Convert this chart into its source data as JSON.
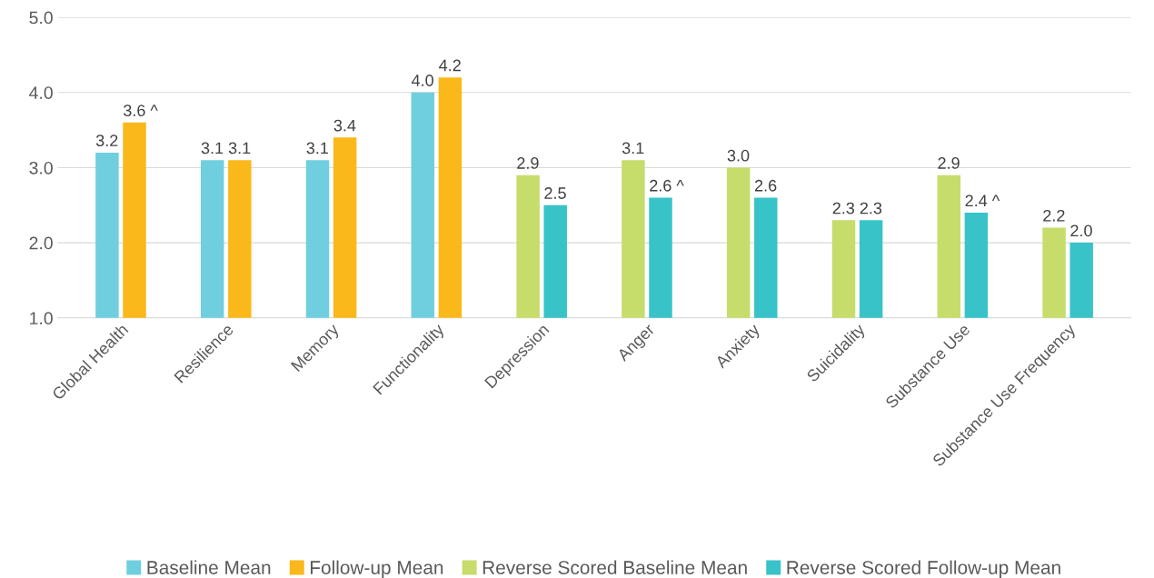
{
  "chart_data": {
    "type": "bar",
    "categories": [
      "Global Health",
      "Resilience",
      "Memory",
      "Functionality",
      "Depression",
      "Anger",
      "Anxiety",
      "Suicidality",
      "Substance Use",
      "Substance Use Frequency"
    ],
    "series": [
      {
        "name": "Baseline Mean",
        "color": "#6fcfdf",
        "values": [
          3.2,
          3.1,
          3.1,
          4.0,
          null,
          null,
          null,
          null,
          null,
          null
        ],
        "value_labels": [
          "3.2",
          "3.1",
          "3.1",
          "4.0",
          null,
          null,
          null,
          null,
          null,
          null
        ]
      },
      {
        "name": "Follow-up Mean",
        "color": "#fbb81a",
        "values": [
          3.6,
          3.1,
          3.4,
          4.2,
          null,
          null,
          null,
          null,
          null,
          null
        ],
        "value_labels": [
          "3.6 ^",
          "3.1",
          "3.4",
          "4.2",
          null,
          null,
          null,
          null,
          null,
          null
        ]
      },
      {
        "name": "Reverse Scored Baseline Mean",
        "color": "#c6dc6b",
        "values": [
          null,
          null,
          null,
          null,
          2.9,
          3.1,
          3.0,
          2.3,
          2.9,
          2.2
        ],
        "value_labels": [
          null,
          null,
          null,
          null,
          "2.9",
          "3.1",
          "3.0",
          "2.3",
          "2.9",
          "2.2"
        ]
      },
      {
        "name": "Reverse Scored Follow-up Mean",
        "color": "#38c3c9",
        "values": [
          null,
          null,
          null,
          null,
          2.5,
          2.6,
          2.6,
          2.3,
          2.4,
          2.0
        ],
        "value_labels": [
          null,
          null,
          null,
          null,
          "2.5",
          "2.6 ^",
          "2.6",
          "2.3",
          "2.4 ^",
          "2.0"
        ]
      }
    ],
    "ylim": [
      1.0,
      5.0
    ],
    "yticks": [
      {
        "value": 1.0,
        "label": "1.0"
      },
      {
        "value": 2.0,
        "label": "2.0"
      },
      {
        "value": 3.0,
        "label": "3.0"
      },
      {
        "value": 4.0,
        "label": "4.0"
      },
      {
        "value": 5.0,
        "label": "5.0"
      }
    ],
    "grid": "y",
    "legend": "bottom"
  }
}
